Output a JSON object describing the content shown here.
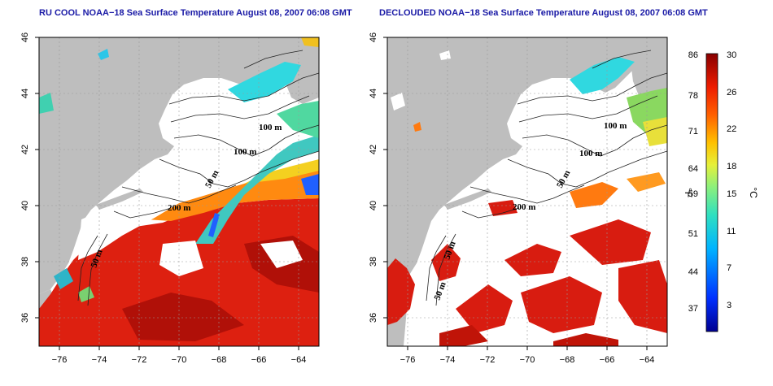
{
  "panels": [
    {
      "title": "RU COOL NOAA−18 Sea Surface Temperature August 08, 2007 06:08 GMT",
      "contour_labels": [
        "100 m",
        "100 m",
        "50 m",
        "200 m",
        "50 m"
      ]
    },
    {
      "title": "DECLOUDED NOAA−18 Sea Surface Temperature August 08, 2007 06:08 GMT",
      "contour_labels": [
        "100 m",
        "100 m",
        "50 m",
        "200 m",
        "50 m",
        "50 m"
      ]
    }
  ],
  "axes": {
    "x_ticks": [
      "−76",
      "−74",
      "−72",
      "−70",
      "−68",
      "−66",
      "−64"
    ],
    "y_ticks": [
      "46",
      "44",
      "42",
      "40",
      "38",
      "36"
    ],
    "lon_range": [
      -77,
      -63
    ],
    "lat_range": [
      35,
      46
    ]
  },
  "colorbar": {
    "fahrenheit_ticks": [
      "86",
      "78",
      "71",
      "64",
      "59",
      "51",
      "44",
      "37"
    ],
    "celsius_ticks": [
      "30",
      "26",
      "22",
      "18",
      "15",
      "11",
      "7",
      "3"
    ],
    "fahrenheit_unit": "°F",
    "celsius_unit": "°C",
    "range_c": [
      0,
      30
    ]
  },
  "colors": {
    "land": "#bebebe",
    "cloud": "#ffffff",
    "title": "#1a1aa6"
  }
}
